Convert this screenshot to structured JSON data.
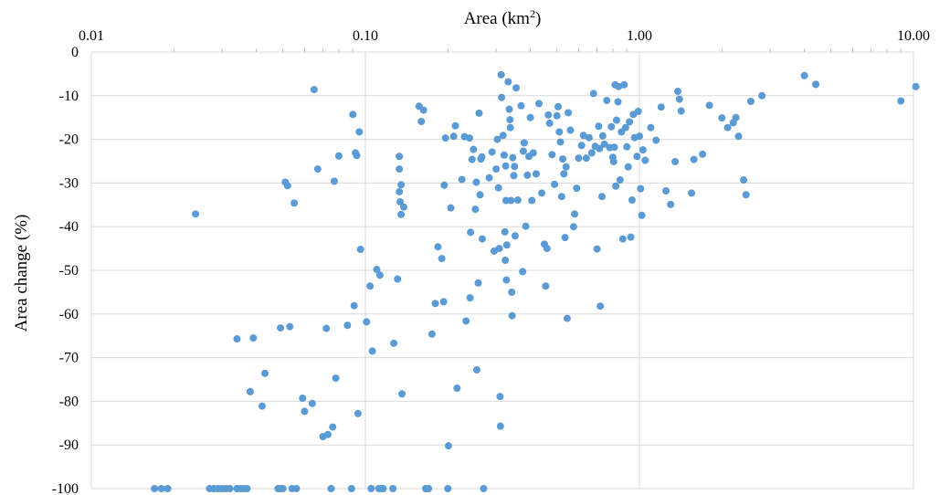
{
  "chart_data": {
    "type": "scatter",
    "title": "",
    "xlabel": "Area (km",
    "xlabel_sup": "2",
    "xlabel_close": ")",
    "ylabel": "Area change (%)",
    "xscale": "log",
    "xlim": [
      0.01,
      10.0
    ],
    "ylim": [
      -100,
      0
    ],
    "grid": "both",
    "x_axis_position": "top",
    "x_ticks": [
      {
        "value": 0.01,
        "label": "0.01"
      },
      {
        "value": 0.1,
        "label": "0.10"
      },
      {
        "value": 1.0,
        "label": "1.00"
      },
      {
        "value": 10.0,
        "label": "10.00"
      }
    ],
    "y_ticks": [
      {
        "value": 0,
        "label": "0"
      },
      {
        "value": -10,
        "label": "-10"
      },
      {
        "value": -20,
        "label": "-20"
      },
      {
        "value": -30,
        "label": "-30"
      },
      {
        "value": -40,
        "label": "-40"
      },
      {
        "value": -50,
        "label": "-50"
      },
      {
        "value": -60,
        "label": "-60"
      },
      {
        "value": -70,
        "label": "-70"
      },
      {
        "value": -80,
        "label": "-80"
      },
      {
        "value": -90,
        "label": "-90"
      },
      {
        "value": -100,
        "label": "-100"
      }
    ],
    "marker_color": "#5b9bd5",
    "grid_color": "#d9d9d9",
    "points": [
      [
        0.017,
        -100
      ],
      [
        0.018,
        -100
      ],
      [
        0.019,
        -100
      ],
      [
        0.024,
        -37.1
      ],
      [
        0.027,
        -100
      ],
      [
        0.028,
        -100
      ],
      [
        0.029,
        -100
      ],
      [
        0.03,
        -100
      ],
      [
        0.031,
        -100
      ],
      [
        0.032,
        -100
      ],
      [
        0.034,
        -100
      ],
      [
        0.035,
        -100
      ],
      [
        0.036,
        -100
      ],
      [
        0.037,
        -100
      ],
      [
        0.034,
        -65.7
      ],
      [
        0.039,
        -65.5
      ],
      [
        0.038,
        -77.8
      ],
      [
        0.042,
        -81.1
      ],
      [
        0.043,
        -73.6
      ],
      [
        0.048,
        -100
      ],
      [
        0.049,
        -100
      ],
      [
        0.05,
        -100
      ],
      [
        0.049,
        -63.2
      ],
      [
        0.051,
        -29.8
      ],
      [
        0.052,
        -30.6
      ],
      [
        0.053,
        -62.9
      ],
      [
        0.054,
        -100
      ],
      [
        0.055,
        -34.6
      ],
      [
        0.056,
        -100
      ],
      [
        0.059,
        -79.3
      ],
      [
        0.06,
        -82.3
      ],
      [
        0.064,
        -80.5
      ],
      [
        0.065,
        -8.6
      ],
      [
        0.067,
        -26.8
      ],
      [
        0.07,
        -88.1
      ],
      [
        0.072,
        -63.3
      ],
      [
        0.073,
        -87.6
      ],
      [
        0.075,
        -100
      ],
      [
        0.076,
        -85.9
      ],
      [
        0.077,
        -29.6
      ],
      [
        0.078,
        -74.7
      ],
      [
        0.08,
        -23.8
      ],
      [
        0.086,
        -62.6
      ],
      [
        0.089,
        -100
      ],
      [
        0.09,
        -14.3
      ],
      [
        0.091,
        -58.1
      ],
      [
        0.092,
        -23.1
      ],
      [
        0.093,
        -23.7
      ],
      [
        0.094,
        -82.8
      ],
      [
        0.095,
        -18.3
      ],
      [
        0.096,
        -45.2
      ],
      [
        0.101,
        -61.8
      ],
      [
        0.104,
        -53.6
      ],
      [
        0.105,
        -100
      ],
      [
        0.106,
        -68.5
      ],
      [
        0.11,
        -49.8
      ],
      [
        0.112,
        -100
      ],
      [
        0.113,
        -51.1
      ],
      [
        0.114,
        -100
      ],
      [
        0.116,
        -100
      ],
      [
        0.126,
        -100
      ],
      [
        0.127,
        -66.7
      ],
      [
        0.131,
        -52.0
      ],
      [
        0.133,
        -26.8
      ],
      [
        0.133,
        -23.9
      ],
      [
        0.133,
        -32.0
      ],
      [
        0.134,
        -34.3
      ],
      [
        0.135,
        -37.2
      ],
      [
        0.135,
        -30.4
      ],
      [
        0.136,
        -78.3
      ],
      [
        0.138,
        -35.5
      ],
      [
        0.157,
        -12.4
      ],
      [
        0.16,
        -15.9
      ],
      [
        0.163,
        -13.3
      ],
      [
        0.166,
        -100
      ],
      [
        0.17,
        -100
      ],
      [
        0.175,
        -64.6
      ],
      [
        0.18,
        -57.6
      ],
      [
        0.184,
        -44.6
      ],
      [
        0.19,
        -47.3
      ],
      [
        0.193,
        -57.2
      ],
      [
        0.194,
        -30.5
      ],
      [
        0.196,
        -19.7
      ],
      [
        0.2,
        -100
      ],
      [
        0.201,
        -90.2
      ],
      [
        0.205,
        -35.7
      ],
      [
        0.21,
        -19.3
      ],
      [
        0.213,
        -16.9
      ],
      [
        0.216,
        -77.0
      ],
      [
        0.225,
        -29.2
      ],
      [
        0.23,
        -19.4
      ],
      [
        0.233,
        -61.6
      ],
      [
        0.24,
        -19.7
      ],
      [
        0.241,
        -56.3
      ],
      [
        0.242,
        -41.3
      ],
      [
        0.245,
        -24.6
      ],
      [
        0.248,
        -22.3
      ],
      [
        0.252,
        -36.0
      ],
      [
        0.254,
        -29.8
      ],
      [
        0.255,
        -72.8
      ],
      [
        0.258,
        -52.9
      ],
      [
        0.26,
        -14.0
      ],
      [
        0.262,
        -32.7
      ],
      [
        0.264,
        -24.5
      ],
      [
        0.266,
        -24.0
      ],
      [
        0.267,
        -42.8
      ],
      [
        0.27,
        -100
      ],
      [
        0.283,
        -28.8
      ],
      [
        0.29,
        -22.9
      ],
      [
        0.295,
        -45.6
      ],
      [
        0.3,
        -26.8
      ],
      [
        0.303,
        -20.0
      ],
      [
        0.306,
        -31.1
      ],
      [
        0.308,
        -45.0
      ],
      [
        0.31,
        -78.9
      ],
      [
        0.311,
        -85.7
      ],
      [
        0.313,
        -5.2
      ],
      [
        0.314,
        -10.4
      ],
      [
        0.318,
        -19.1
      ],
      [
        0.321,
        -23.6
      ],
      [
        0.323,
        -41.2
      ],
      [
        0.324,
        -47.7
      ],
      [
        0.325,
        -26.1
      ],
      [
        0.326,
        -34.0
      ],
      [
        0.327,
        -52.2
      ],
      [
        0.328,
        -44.2
      ],
      [
        0.332,
        -6.8
      ],
      [
        0.335,
        -13.1
      ],
      [
        0.337,
        -15.5
      ],
      [
        0.338,
        -17.3
      ],
      [
        0.34,
        -34.0
      ],
      [
        0.342,
        -55.0
      ],
      [
        0.343,
        -60.4
      ],
      [
        0.345,
        -24.2
      ],
      [
        0.348,
        -28.3
      ],
      [
        0.35,
        -26.2
      ],
      [
        0.352,
        -42.1
      ],
      [
        0.355,
        -8.2
      ],
      [
        0.36,
        -33.9
      ],
      [
        0.37,
        -12.3
      ],
      [
        0.375,
        -50.3
      ],
      [
        0.377,
        -22.7
      ],
      [
        0.38,
        -20.8
      ],
      [
        0.385,
        -39.9
      ],
      [
        0.39,
        -28.2
      ],
      [
        0.395,
        -23.9
      ],
      [
        0.4,
        -15.0
      ],
      [
        0.405,
        -34.0
      ],
      [
        0.41,
        -23.1
      ],
      [
        0.42,
        -27.9
      ],
      [
        0.43,
        -11.8
      ],
      [
        0.44,
        -32.3
      ],
      [
        0.45,
        -44.0
      ],
      [
        0.455,
        -53.6
      ],
      [
        0.46,
        -45.0
      ],
      [
        0.465,
        -14.4
      ],
      [
        0.47,
        -16.3
      ],
      [
        0.48,
        -23.5
      ],
      [
        0.49,
        -30.3
      ],
      [
        0.5,
        -14.6
      ],
      [
        0.505,
        -12.5
      ],
      [
        0.51,
        -18.3
      ],
      [
        0.515,
        -20.6
      ],
      [
        0.52,
        -33.1
      ],
      [
        0.525,
        -24.5
      ],
      [
        0.53,
        -27.9
      ],
      [
        0.535,
        -42.5
      ],
      [
        0.54,
        -26.3
      ],
      [
        0.545,
        -61.0
      ],
      [
        0.55,
        -13.9
      ],
      [
        0.56,
        -17.9
      ],
      [
        0.575,
        -40.0
      ],
      [
        0.58,
        -37.1
      ],
      [
        0.59,
        -31.2
      ],
      [
        0.6,
        -24.3
      ],
      [
        0.615,
        -21.4
      ],
      [
        0.625,
        -19.1
      ],
      [
        0.64,
        -24.3
      ],
      [
        0.655,
        -19.6
      ],
      [
        0.67,
        -23.1
      ],
      [
        0.68,
        -9.5
      ],
      [
        0.69,
        -21.6
      ],
      [
        0.7,
        -45.1
      ],
      [
        0.71,
        -17.0
      ],
      [
        0.715,
        -22.1
      ],
      [
        0.72,
        -58.2
      ],
      [
        0.73,
        -33.1
      ],
      [
        0.735,
        -19.2
      ],
      [
        0.745,
        -21.1
      ],
      [
        0.76,
        -11.1
      ],
      [
        0.78,
        -21.9
      ],
      [
        0.79,
        -17.1
      ],
      [
        0.8,
        -24.1
      ],
      [
        0.805,
        -25.1
      ],
      [
        0.81,
        -21.8
      ],
      [
        0.815,
        -7.5
      ],
      [
        0.82,
        -30.7
      ],
      [
        0.825,
        -15.6
      ],
      [
        0.835,
        -11.4
      ],
      [
        0.84,
        -7.9
      ],
      [
        0.85,
        -29.3
      ],
      [
        0.86,
        -18.3
      ],
      [
        0.87,
        -42.8
      ],
      [
        0.88,
        -7.5
      ],
      [
        0.89,
        -17.3
      ],
      [
        0.9,
        -21.7
      ],
      [
        0.91,
        -26.3
      ],
      [
        0.92,
        -16.0
      ],
      [
        0.93,
        -42.4
      ],
      [
        0.94,
        -33.9
      ],
      [
        0.95,
        -14.3
      ],
      [
        0.96,
        -19.6
      ],
      [
        0.98,
        -23.9
      ],
      [
        0.99,
        -13.6
      ],
      [
        1.0,
        -19.3
      ],
      [
        1.01,
        -31.3
      ],
      [
        1.02,
        -37.4
      ],
      [
        1.03,
        -22.4
      ],
      [
        1.05,
        -24.8
      ],
      [
        1.1,
        -17.3
      ],
      [
        1.15,
        -20.2
      ],
      [
        1.2,
        -12.6
      ],
      [
        1.25,
        -31.8
      ],
      [
        1.3,
        -34.9
      ],
      [
        1.35,
        -25.1
      ],
      [
        1.38,
        -9.0
      ],
      [
        1.4,
        -10.8
      ],
      [
        1.42,
        -13.5
      ],
      [
        1.55,
        -32.3
      ],
      [
        1.58,
        -24.6
      ],
      [
        1.7,
        -23.4
      ],
      [
        1.8,
        -12.2
      ],
      [
        2.0,
        -15.1
      ],
      [
        2.1,
        -17.3
      ],
      [
        2.2,
        -16.2
      ],
      [
        2.25,
        -15.0
      ],
      [
        2.3,
        -19.3
      ],
      [
        2.4,
        -29.3
      ],
      [
        2.45,
        -32.7
      ],
      [
        2.55,
        -11.3
      ],
      [
        2.8,
        -10.0
      ],
      [
        4.0,
        -5.4
      ],
      [
        4.4,
        -7.4
      ],
      [
        9.0,
        -11.2
      ],
      [
        10.2,
        -7.9
      ]
    ]
  }
}
